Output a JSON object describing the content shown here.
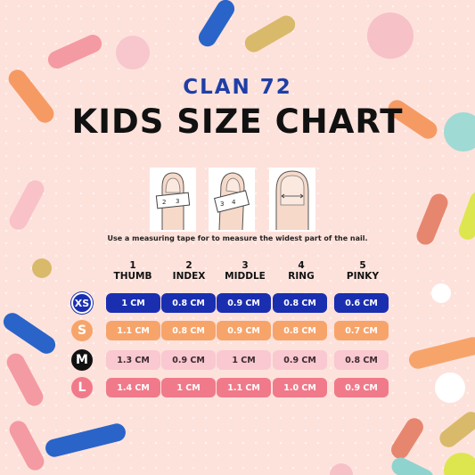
{
  "brand": "CLAN 72",
  "title": "KIDS SIZE CHART",
  "instruction": "Use a measuring tape for to measure the widest part of the nail.",
  "measure_illustrations": [
    "measure-thumb-illustration",
    "measure-index-illustration",
    "nail-width-illustration"
  ],
  "columns": [
    {
      "number": "1",
      "name": "THUMB"
    },
    {
      "number": "2",
      "name": "INDEX"
    },
    {
      "number": "3",
      "name": "MIDDLE"
    },
    {
      "number": "4",
      "name": "RING"
    },
    {
      "number": "5",
      "name": "PINKY"
    }
  ],
  "sizes": [
    {
      "label": "XS",
      "badge_color": "#1a2fb0",
      "badge_text": "#ffffff",
      "cell_color": "#1a2fb0",
      "cell_text": "#ffffff",
      "values": [
        "1 CM",
        "0.8 CM",
        "0.9 CM",
        "0.8 CM",
        "0.6 CM"
      ]
    },
    {
      "label": "S",
      "badge_color": "#f7a46b",
      "badge_text": "#ffffff",
      "cell_color": "#f7a46b",
      "cell_text": "#ffffff",
      "values": [
        "1.1 CM",
        "0.8 CM",
        "0.9 CM",
        "0.8 CM",
        "0.7 CM"
      ]
    },
    {
      "label": "M",
      "badge_color": "#111111",
      "badge_text": "#ffffff",
      "cell_color": "#f9c8d0",
      "cell_text": "#3a2a2e",
      "values": [
        "1.3 CM",
        "0.9 CM",
        "1 CM",
        "0.9 CM",
        "0.8 CM"
      ]
    },
    {
      "label": "L",
      "badge_color": "#f07a8a",
      "badge_text": "#ffffff",
      "cell_color": "#f07a8a",
      "cell_text": "#ffffff",
      "values": [
        "1.4 CM",
        "1 CM",
        "1.1 CM",
        "1.0 CM",
        "0.9 CM"
      ]
    }
  ]
}
